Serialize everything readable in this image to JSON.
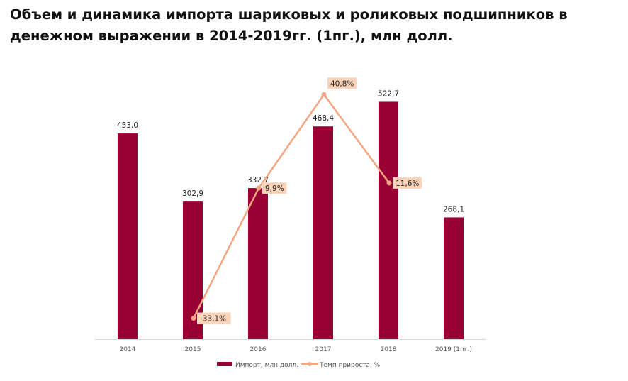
{
  "chart_data": {
    "type": "bar+line",
    "title": "Объем и динамика импорта шариковых и роликовых подшипников в денежном выражении в 2014-2019гг. (1пг.), млн долл.",
    "categories": [
      "2014",
      "2015",
      "2016",
      "2017",
      "2018",
      "2019 (1пг.)"
    ],
    "series": [
      {
        "name": "Импорт, млн долл.",
        "type": "bar",
        "values": [
          453.0,
          302.9,
          332.7,
          468.4,
          522.7,
          268.1
        ],
        "labels": [
          "453,0",
          "302,9",
          "332,7",
          "468,4",
          "522,7",
          "268,1"
        ],
        "color": "#990033"
      },
      {
        "name": "Темп прироста, %",
        "type": "line",
        "values": [
          null,
          -33.1,
          9.9,
          40.8,
          11.6,
          null
        ],
        "labels": [
          null,
          "-33,1%",
          "9,9%",
          "40,8%",
          "11,6%",
          null
        ],
        "color": "#f4a582",
        "label_bg": "#fbd3b8"
      }
    ],
    "ylim": [
      0,
      600
    ],
    "y2lim": [
      -40,
      50
    ],
    "grid": false,
    "legend": "bottom"
  }
}
